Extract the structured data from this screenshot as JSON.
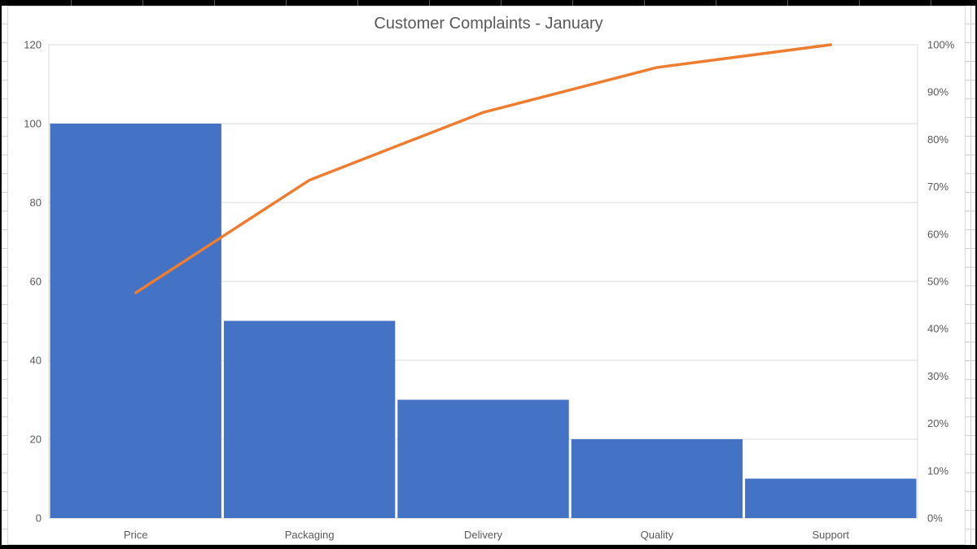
{
  "chart": {
    "title": "Customer Complaints - January"
  },
  "chart_data": {
    "type": "bar",
    "subtype": "pareto-combo",
    "title": "Customer Complaints - January",
    "categories": [
      "Price",
      "Packaging",
      "Delivery",
      "Quality",
      "Support"
    ],
    "series": [
      {
        "id": "complaint-count-bars",
        "chart": "bar",
        "axis": "left",
        "values": [
          100,
          50,
          30,
          20,
          10
        ],
        "color": "#4472C4"
      },
      {
        "id": "cumulative-percent-line",
        "chart": "line",
        "axis": "right",
        "values": [
          47.6,
          71.4,
          85.7,
          95.2,
          100
        ],
        "color": "#ED7D31"
      }
    ],
    "left_axis": {
      "min": 0,
      "max": 120,
      "step": 20,
      "tick_labels": [
        "0",
        "20",
        "40",
        "60",
        "80",
        "100",
        "120"
      ]
    },
    "right_axis": {
      "min": 0,
      "max": 100,
      "step": 10,
      "tick_labels": [
        "0%",
        "10%",
        "20%",
        "30%",
        "40%",
        "50%",
        "60%",
        "70%",
        "80%",
        "90%",
        "100%"
      ]
    },
    "grid": "horizontal",
    "legend_position": "none"
  },
  "colors": {
    "bar": "#4472C4",
    "line": "#ED7D31",
    "gridline": "#D9D9D9",
    "plot_border": "#D9D9D9",
    "axis_text": "#595959",
    "title_text": "#595959",
    "frame": "#000000",
    "sheet_line": "#D0D0D0"
  }
}
